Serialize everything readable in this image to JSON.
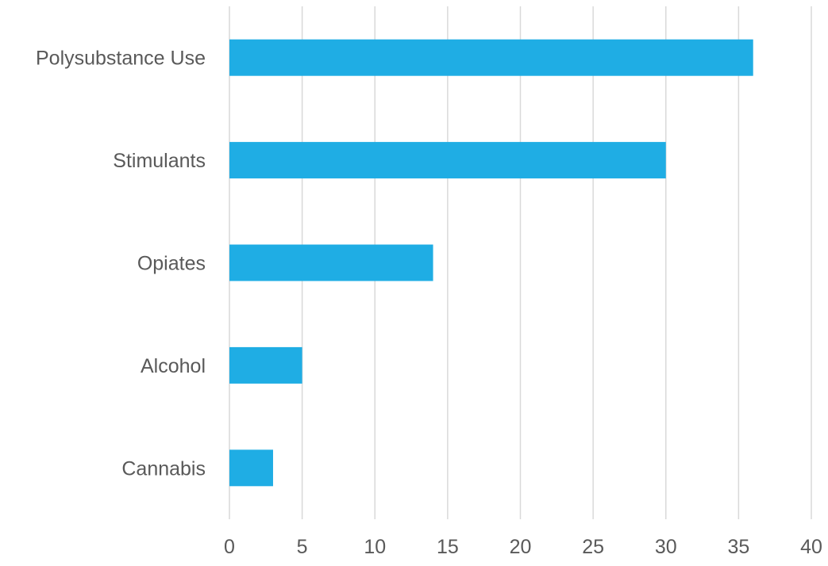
{
  "chart_data": {
    "type": "bar",
    "orientation": "horizontal",
    "categories": [
      "Polysubstance Use",
      "Stimulants",
      "Opiates",
      "Alcohol",
      "Cannabis"
    ],
    "values": [
      36,
      30,
      14,
      5,
      3
    ],
    "title": "",
    "xlabel": "",
    "ylabel": "",
    "xlim": [
      0,
      40
    ],
    "x_ticks": [
      0,
      5,
      10,
      15,
      20,
      25,
      30,
      35,
      40
    ],
    "grid": "vertical",
    "legend": "none",
    "bar_color": "#1FADE4"
  }
}
